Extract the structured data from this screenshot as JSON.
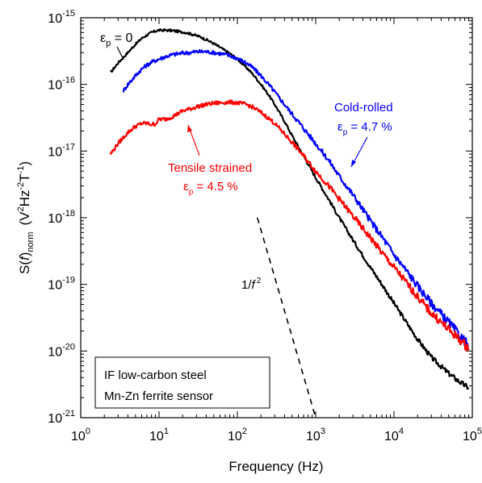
{
  "chart_data": {
    "type": "line",
    "xlabel": "Frequency (Hz)",
    "ylabel": {
      "main": "S(",
      "italic": "f",
      "close": ")",
      "sub": "norm",
      "units_prefix": "(V",
      "units_sup1": "2",
      "units_mid": "Hz",
      "units_sup2": "-2",
      "units_mid2": "T",
      "units_sup3": "-1",
      "units_suffix": ")"
    },
    "x_scale": "log",
    "y_scale": "log",
    "xlim": [
      1,
      100000
    ],
    "ylim": [
      1e-21,
      1e-15
    ],
    "x_ticks": [
      {
        "value": 1,
        "base": "10",
        "exp": "0"
      },
      {
        "value": 10,
        "base": "10",
        "exp": "1"
      },
      {
        "value": 100,
        "base": "10",
        "exp": "2"
      },
      {
        "value": 1000,
        "base": "10",
        "exp": "3"
      },
      {
        "value": 10000,
        "base": "10",
        "exp": "4"
      },
      {
        "value": 100000,
        "base": "10",
        "exp": "5"
      }
    ],
    "y_ticks": [
      {
        "value": 1e-15,
        "base": "10",
        "exp": "-15"
      },
      {
        "value": 1e-16,
        "base": "10",
        "exp": "-16"
      },
      {
        "value": 1e-17,
        "base": "10",
        "exp": "-17"
      },
      {
        "value": 1e-18,
        "base": "10",
        "exp": "-18"
      },
      {
        "value": 1e-19,
        "base": "10",
        "exp": "-19"
      },
      {
        "value": 1e-20,
        "base": "10",
        "exp": "-20"
      },
      {
        "value": 1e-21,
        "base": "10",
        "exp": "-21"
      }
    ],
    "grid": false,
    "series": [
      {
        "color": "#000000",
        "noise": 0.03,
        "x": [
          2.4,
          3,
          4,
          5,
          6,
          7,
          8,
          9,
          10,
          12,
          15,
          18,
          22,
          27,
          33,
          40,
          50,
          60,
          80,
          100,
          130,
          160,
          200,
          250,
          300,
          400,
          500,
          700,
          1000,
          1500,
          2000,
          3000,
          5000,
          7000,
          10000,
          15000,
          20000,
          30000,
          50000,
          70000,
          90000
        ],
        "y": [
          1.5e-16,
          2.1e-16,
          3e-16,
          4e-16,
          4.9e-16,
          5.5e-16,
          6e-16,
          6.3e-16,
          6.5e-16,
          6.5e-16,
          6.4e-16,
          6.2e-16,
          6e-16,
          5.6e-16,
          5.2e-16,
          4.7e-16,
          4.1e-16,
          3.6e-16,
          2.9e-16,
          2.4e-16,
          1.8e-16,
          1.4e-16,
          1e-16,
          7e-17,
          5e-17,
          2.8e-17,
          1.7e-17,
          8.5e-18,
          4e-18,
          1.8e-18,
          1e-18,
          4.6e-19,
          1.8e-19,
          1e-19,
          5.2e-20,
          2.5e-20,
          1.5e-20,
          8e-21,
          4.6e-21,
          3.4e-21,
          2.8e-21
        ]
      },
      {
        "color": "#0000ff",
        "noise": 0.05,
        "x": [
          3.5,
          4,
          5,
          6,
          7,
          8,
          10,
          12,
          15,
          20,
          25,
          30,
          40,
          50,
          60,
          80,
          100,
          130,
          160,
          200,
          250,
          300,
          400,
          500,
          700,
          1000,
          1500,
          2000,
          3000,
          5000,
          7000,
          10000,
          15000,
          20000,
          30000,
          50000,
          70000,
          90000
        ],
        "y": [
          8e-17,
          1e-16,
          1.35e-16,
          1.7e-16,
          1.95e-16,
          2.15e-16,
          2.4e-16,
          2.6e-16,
          2.8e-16,
          2.95e-16,
          3e-16,
          3.1e-16,
          3.1e-16,
          3e-16,
          2.9e-16,
          2.7e-16,
          2.45e-16,
          2.1e-16,
          1.75e-16,
          1.35e-16,
          1e-16,
          7.7e-17,
          5e-17,
          3.6e-17,
          2.2e-17,
          1.3e-17,
          7e-18,
          4.2e-18,
          2.2e-18,
          9e-19,
          5.2e-19,
          2.8e-19,
          1.5e-19,
          9.5e-20,
          5.2e-20,
          2.7e-20,
          1.7e-20,
          1.2e-20
        ]
      },
      {
        "color": "#ff0000",
        "noise": 0.05,
        "x": [
          2.4,
          3,
          4,
          5,
          6,
          7,
          8,
          9,
          10,
          12,
          15,
          20,
          25,
          30,
          40,
          50,
          60,
          80,
          100,
          130,
          160,
          200,
          250,
          300,
          400,
          500,
          700,
          1000,
          1500,
          2000,
          3000,
          5000,
          7000,
          10000,
          15000,
          20000,
          30000,
          50000,
          70000,
          90000
        ],
        "y": [
          9e-18,
          1.3e-17,
          1.9e-17,
          2.35e-17,
          2.6e-17,
          2.6e-17,
          2.5e-17,
          2.55e-17,
          3e-17,
          3e-17,
          3.3e-17,
          4e-17,
          4.3e-17,
          4.6e-17,
          5e-17,
          5.2e-17,
          5.3e-17,
          5.4e-17,
          5.3e-17,
          5e-17,
          4.5e-17,
          3.8e-17,
          3.1e-17,
          2.6e-17,
          1.8e-17,
          1.35e-17,
          8.5e-18,
          5e-18,
          2.9e-18,
          1.9e-18,
          1.05e-18,
          5e-19,
          3e-19,
          1.8e-19,
          1e-19,
          6.5e-20,
          3.7e-20,
          2.1e-20,
          1.45e-20,
          1.1e-20
        ]
      }
    ],
    "reference_line": {
      "label_italic": "f",
      "label_prefix": "1/",
      "label_sup": "2",
      "x": [
        180,
        1000
      ],
      "y": [
        1e-18,
        1e-21
      ]
    },
    "annotations": {
      "black_label": {
        "main": "ε",
        "sub": "p",
        "rest": " = 0",
        "color": "#000000"
      },
      "blue_label": {
        "title": "Cold-rolled",
        "main": "ε",
        "sub": "p",
        "rest": " = 4.7 %",
        "color": "#0000ff"
      },
      "red_label": {
        "title": "Tensile strained",
        "main": "ε",
        "sub": "p",
        "rest": " = 4.5 %",
        "color": "#ff0000"
      }
    },
    "legend_box": {
      "line1": "IF low-carbon steel",
      "line2": "Mn-Zn ferrite sensor"
    }
  }
}
